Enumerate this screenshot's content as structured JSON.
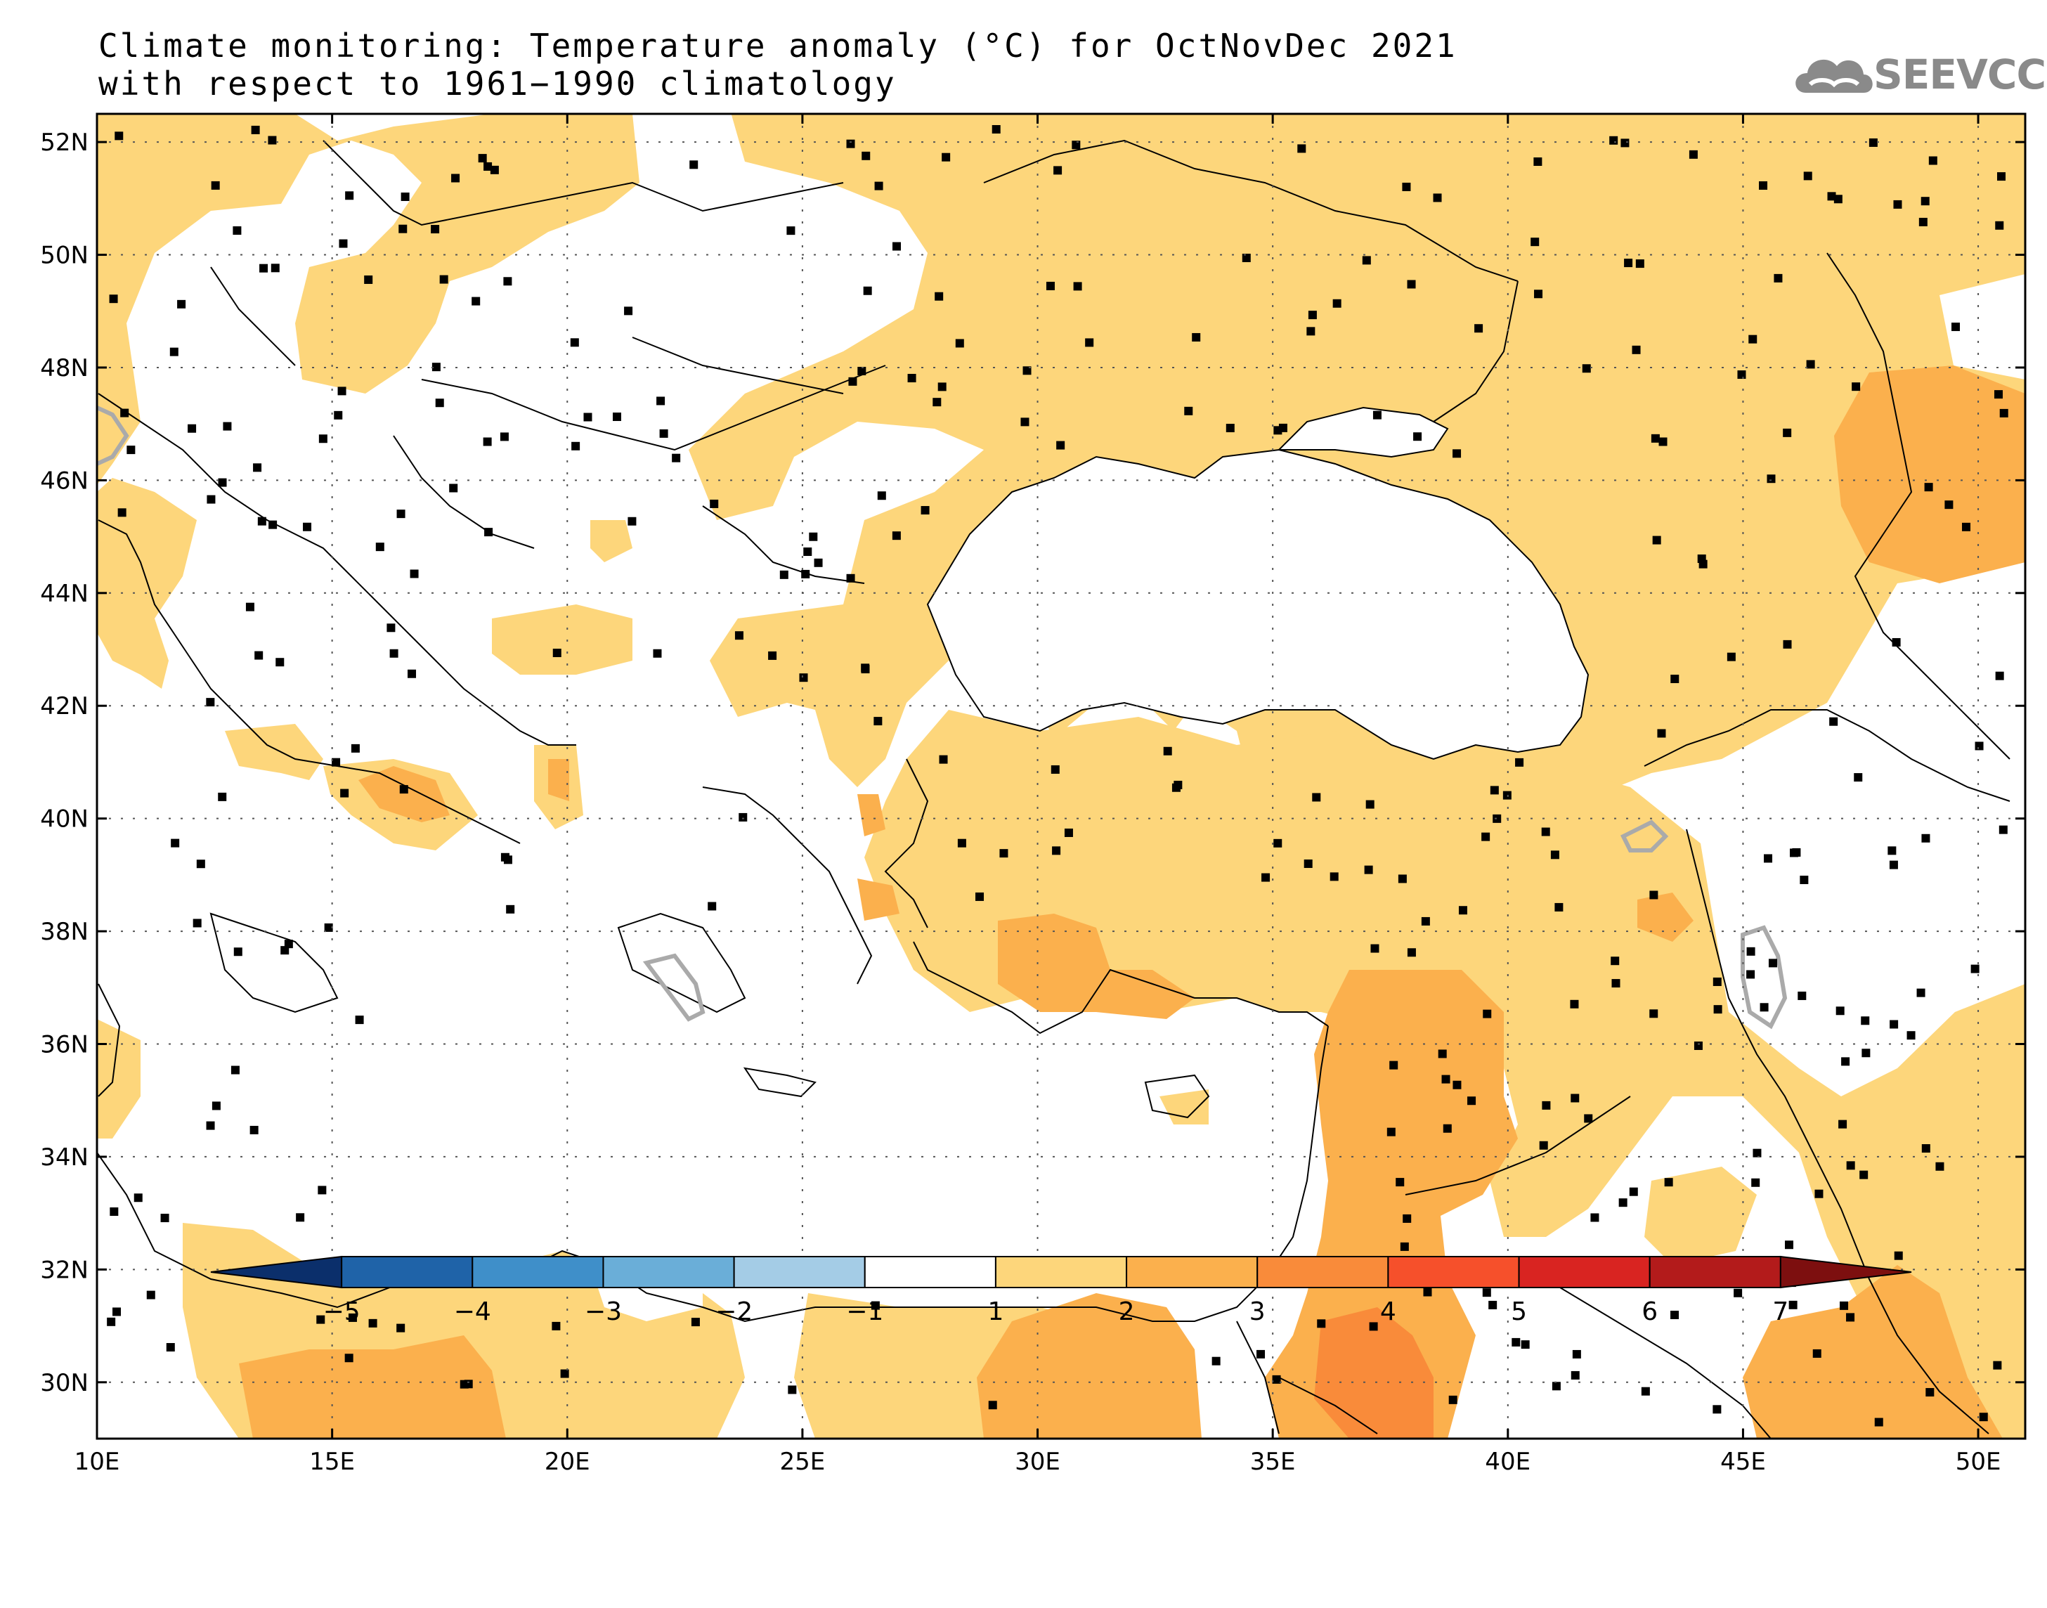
{
  "title": {
    "line1": "Climate monitoring: Temperature anomaly (°C) for OctNovDec 2021",
    "line2": "with respect to 1961−1990 climatology"
  },
  "logo": {
    "text": "SEEVCCC"
  },
  "map": {
    "lon_range": [
      10,
      51
    ],
    "lat_range": [
      29,
      52.5
    ],
    "lon_ticks": [
      {
        "value": 10,
        "label": "10E"
      },
      {
        "value": 15,
        "label": "15E"
      },
      {
        "value": 20,
        "label": "20E"
      },
      {
        "value": 25,
        "label": "25E"
      },
      {
        "value": 30,
        "label": "30E"
      },
      {
        "value": 35,
        "label": "35E"
      },
      {
        "value": 40,
        "label": "40E"
      },
      {
        "value": 45,
        "label": "45E"
      },
      {
        "value": 50,
        "label": "50E"
      }
    ],
    "lat_ticks": [
      {
        "value": 30,
        "label": "30N"
      },
      {
        "value": 32,
        "label": "32N"
      },
      {
        "value": 34,
        "label": "34N"
      },
      {
        "value": 36,
        "label": "36N"
      },
      {
        "value": 38,
        "label": "38N"
      },
      {
        "value": 40,
        "label": "40N"
      },
      {
        "value": 42,
        "label": "42N"
      },
      {
        "value": 44,
        "label": "44N"
      },
      {
        "value": 46,
        "label": "46N"
      },
      {
        "value": 48,
        "label": "48N"
      },
      {
        "value": 50,
        "label": "50N"
      },
      {
        "value": 52,
        "label": "52N"
      }
    ]
  },
  "colorbar": {
    "levels": [
      "−5",
      "−4",
      "−3",
      "−2",
      "−1",
      "1",
      "2",
      "3",
      "4",
      "5",
      "6",
      "7"
    ],
    "colors": [
      "#0b2f6b",
      "#1f63a8",
      "#3f8fc9",
      "#6aaed8",
      "#a4cce6",
      "#ffffff",
      "#fdd67b",
      "#fbb04d",
      "#f98b3a",
      "#f6502b",
      "#d92421",
      "#b31b1b",
      "#7d0f0f"
    ]
  },
  "anomaly_colors": {
    "class_1_2": "#fdd67b",
    "class_2_3": "#fbb04d",
    "class_3_4": "#f98b3a",
    "neg_contour": "#aaaaaa"
  }
}
